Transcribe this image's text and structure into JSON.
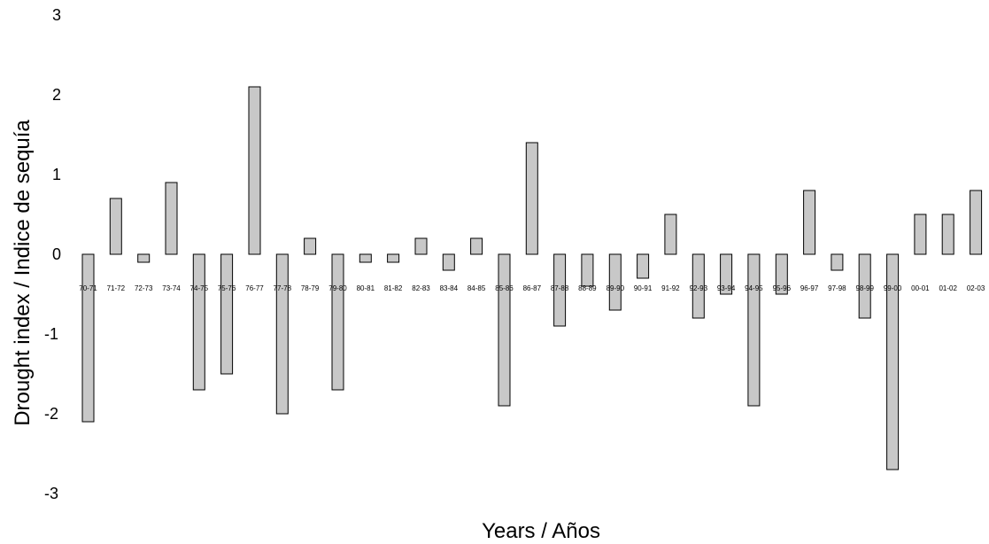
{
  "chart_data": {
    "type": "bar",
    "title": "",
    "xlabel": "Years / Años",
    "ylabel": "Drought index / Indice de sequía",
    "ylim": [
      -3,
      3
    ],
    "yticks": [
      3,
      2,
      1,
      0,
      -1,
      -2,
      -3
    ],
    "grid": false,
    "bar_color": "#c8c8c8",
    "categories": [
      "70-71",
      "71-72",
      "72-73",
      "73-74",
      "74-75",
      "75-76",
      "76-77",
      "77-78",
      "78-79",
      "79-80",
      "80-81",
      "81-82",
      "82-83",
      "83-84",
      "84-85",
      "85-86",
      "86-87",
      "87-88",
      "88-89",
      "89-90",
      "90-91",
      "91-92",
      "92-93",
      "93-94",
      "94-95",
      "95-96",
      "96-97",
      "97-98",
      "98-99",
      "99-00",
      "00-01",
      "01-02",
      "02-03"
    ],
    "values": [
      -2.1,
      0.7,
      -0.1,
      0.9,
      -1.7,
      -1.5,
      2.1,
      -2.0,
      0.2,
      -1.7,
      -0.1,
      -0.1,
      0.2,
      -0.2,
      0.2,
      -1.9,
      1.4,
      -0.9,
      -0.4,
      -0.7,
      -0.3,
      0.5,
      -0.8,
      -0.5,
      -1.9,
      -0.5,
      0.8,
      -0.2,
      -0.8,
      -2.7,
      0.5,
      0.5,
      0.8
    ]
  }
}
